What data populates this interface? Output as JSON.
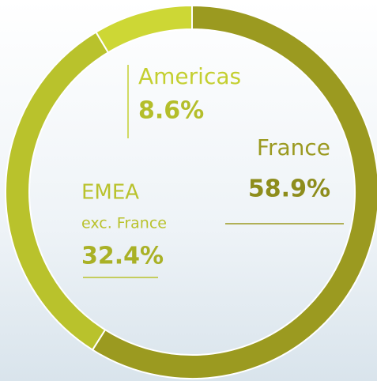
{
  "chart_data": {
    "type": "donut",
    "categories": [
      "France",
      "EMEA",
      "Americas"
    ],
    "category_sublabels": [
      null,
      "exc. France",
      null
    ],
    "values": [
      58.9,
      32.4,
      8.6
    ],
    "value_labels": [
      "58.9%",
      "32.4%",
      "8.6%"
    ],
    "colors": [
      "#9b9a20",
      "#b9c22c",
      "#cdd735"
    ],
    "label_colors": [
      "#9b9a20",
      "#b9c22c",
      "#c4cf30"
    ],
    "value_label_colors": [
      "#8e8d1c",
      "#a9b126",
      "#b4be2a"
    ]
  }
}
